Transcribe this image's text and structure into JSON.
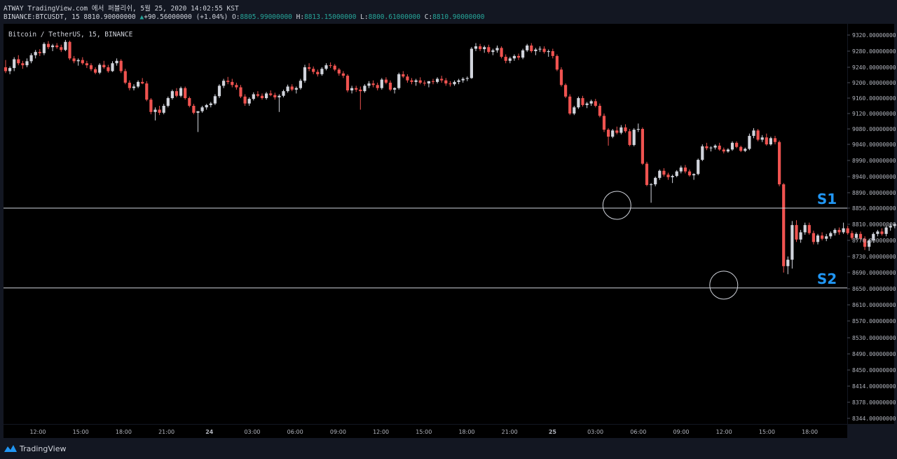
{
  "header": {
    "line1": "ATWAY TradingView.com 에서 퍼블리쉬, 5월 25, 2020 14:02:55 KST",
    "symbol": "BINANCE:BTCUSDT, 15",
    "last": "8810.90000000",
    "arrow": "▲",
    "change": "+90.56000000 (+1.04%)",
    "o_label": "O:",
    "o_value": "8805.99000000",
    "h_label": "H:",
    "h_value": "8813.15000000",
    "l_label": "L:",
    "l_value": "8800.61000000",
    "c_label": "C:",
    "c_value": "8810.90000000"
  },
  "footer": {
    "logo_text": "TradingView",
    "logo_icon": "tradingview-logo-icon"
  },
  "colors": {
    "background": "#000000",
    "frame": "#131722",
    "up": "#d1d4dc",
    "down": "#ef5350",
    "level_line": "#d1d4dc",
    "level_label": "#2196f3",
    "axis_text": "#b2b5be"
  },
  "chart_data": {
    "type": "candlestick",
    "title": "Bitcoin / TetherUS, 15, BINANCE",
    "y_ticks": [
      9320,
      9280,
      9240,
      9200,
      9160,
      9120,
      9080,
      9040,
      8990,
      8940,
      8890,
      8850,
      8810,
      8770,
      8730,
      8690,
      8650,
      8610,
      8570,
      8530,
      8490,
      8450,
      8414,
      8378,
      8344
    ],
    "y_tick_decimals": 8,
    "x_ticks": [
      "12:00",
      "15:00",
      "18:00",
      "21:00",
      "24",
      "03:00",
      "06:00",
      "09:00",
      "12:00",
      "15:00",
      "18:00",
      "21:00",
      "25",
      "03:00",
      "06:00",
      "09:00",
      "12:00",
      "15:00",
      "18:00"
    ],
    "x_tick_bold": [
      "24",
      "25"
    ],
    "levels": [
      {
        "label": "S1",
        "value": 8850
      },
      {
        "label": "S2",
        "value": 8652
      }
    ],
    "annotations": [
      {
        "type": "circle",
        "near_level": "S1",
        "candle_index": 143
      },
      {
        "type": "circle",
        "near_level": "S2",
        "candle_index": 168
      }
    ],
    "ohlc": [
      [
        9240,
        9258,
        9225,
        9230
      ],
      [
        9230,
        9242,
        9222,
        9238
      ],
      [
        9238,
        9265,
        9230,
        9260
      ],
      [
        9260,
        9270,
        9245,
        9250
      ],
      [
        9250,
        9256,
        9236,
        9245
      ],
      [
        9245,
        9262,
        9240,
        9255
      ],
      [
        9255,
        9275,
        9250,
        9270
      ],
      [
        9270,
        9283,
        9262,
        9278
      ],
      [
        9278,
        9285,
        9268,
        9275
      ],
      [
        9275,
        9302,
        9270,
        9298
      ],
      [
        9298,
        9305,
        9285,
        9290
      ],
      [
        9290,
        9298,
        9280,
        9294
      ],
      [
        9294,
        9300,
        9286,
        9290
      ],
      [
        9290,
        9296,
        9278,
        9283
      ],
      [
        9283,
        9308,
        9280,
        9303
      ],
      [
        9303,
        9306,
        9258,
        9262
      ],
      [
        9262,
        9268,
        9250,
        9255
      ],
      [
        9255,
        9262,
        9244,
        9258
      ],
      [
        9258,
        9265,
        9246,
        9250
      ],
      [
        9250,
        9256,
        9238,
        9245
      ],
      [
        9245,
        9250,
        9230,
        9235
      ],
      [
        9235,
        9240,
        9222,
        9226
      ],
      [
        9226,
        9250,
        9222,
        9246
      ],
      [
        9246,
        9256,
        9236,
        9240
      ],
      [
        9240,
        9246,
        9226,
        9230
      ],
      [
        9230,
        9255,
        9228,
        9250
      ],
      [
        9250,
        9262,
        9244,
        9256
      ],
      [
        9256,
        9260,
        9225,
        9230
      ],
      [
        9230,
        9236,
        9196,
        9200
      ],
      [
        9200,
        9206,
        9180,
        9186
      ],
      [
        9186,
        9196,
        9180,
        9190
      ],
      [
        9190,
        9206,
        9186,
        9202
      ],
      [
        9202,
        9212,
        9196,
        9198
      ],
      [
        9198,
        9204,
        9152,
        9156
      ],
      [
        9156,
        9160,
        9118,
        9124
      ],
      [
        9124,
        9136,
        9102,
        9130
      ],
      [
        9130,
        9140,
        9116,
        9122
      ],
      [
        9122,
        9145,
        9118,
        9140
      ],
      [
        9140,
        9164,
        9136,
        9160
      ],
      [
        9160,
        9182,
        9156,
        9178
      ],
      [
        9178,
        9186,
        9162,
        9166
      ],
      [
        9166,
        9190,
        9162,
        9186
      ],
      [
        9186,
        9190,
        9156,
        9160
      ],
      [
        9160,
        9164,
        9136,
        9140
      ],
      [
        9140,
        9145,
        9118,
        9122
      ],
      [
        9122,
        9126,
        9072,
        9126
      ],
      [
        9126,
        9140,
        9122,
        9136
      ],
      [
        9136,
        9145,
        9130,
        9142
      ],
      [
        9142,
        9150,
        9136,
        9146
      ],
      [
        9146,
        9170,
        9142,
        9165
      ],
      [
        9165,
        9196,
        9160,
        9192
      ],
      [
        9192,
        9210,
        9186,
        9205
      ],
      [
        9205,
        9215,
        9196,
        9202
      ],
      [
        9202,
        9210,
        9188,
        9194
      ],
      [
        9194,
        9200,
        9182,
        9188
      ],
      [
        9188,
        9194,
        9160,
        9164
      ],
      [
        9164,
        9170,
        9140,
        9146
      ],
      [
        9146,
        9162,
        9140,
        9158
      ],
      [
        9158,
        9175,
        9154,
        9170
      ],
      [
        9170,
        9178,
        9162,
        9166
      ],
      [
        9166,
        9172,
        9156,
        9160
      ],
      [
        9160,
        9176,
        9156,
        9172
      ],
      [
        9172,
        9180,
        9165,
        9168
      ],
      [
        9168,
        9174,
        9156,
        9162
      ],
      [
        9162,
        9170,
        9124,
        9166
      ],
      [
        9166,
        9182,
        9162,
        9178
      ],
      [
        9178,
        9195,
        9174,
        9190
      ],
      [
        9190,
        9196,
        9178,
        9182
      ],
      [
        9182,
        9190,
        9172,
        9186
      ],
      [
        9186,
        9210,
        9182,
        9205
      ],
      [
        9205,
        9246,
        9200,
        9240
      ],
      [
        9240,
        9250,
        9230,
        9236
      ],
      [
        9236,
        9242,
        9222,
        9228
      ],
      [
        9228,
        9234,
        9216,
        9222
      ],
      [
        9222,
        9240,
        9218,
        9236
      ],
      [
        9236,
        9250,
        9232,
        9245
      ],
      [
        9245,
        9252,
        9238,
        9244
      ],
      [
        9244,
        9248,
        9230,
        9234
      ],
      [
        9234,
        9238,
        9218,
        9224
      ],
      [
        9224,
        9230,
        9212,
        9218
      ],
      [
        9218,
        9222,
        9175,
        9180
      ],
      [
        9180,
        9192,
        9172,
        9186
      ],
      [
        9186,
        9192,
        9176,
        9182
      ],
      [
        9182,
        9190,
        9130,
        9178
      ],
      [
        9178,
        9196,
        9174,
        9192
      ],
      [
        9192,
        9204,
        9186,
        9198
      ],
      [
        9198,
        9206,
        9188,
        9194
      ],
      [
        9194,
        9200,
        9180,
        9186
      ],
      [
        9186,
        9212,
        9182,
        9208
      ],
      [
        9208,
        9214,
        9196,
        9200
      ],
      [
        9200,
        9206,
        9178,
        9182
      ],
      [
        9182,
        9188,
        9172,
        9186
      ],
      [
        9186,
        9226,
        9182,
        9222
      ],
      [
        9222,
        9230,
        9212,
        9216
      ],
      [
        9216,
        9222,
        9200,
        9206
      ],
      [
        9206,
        9212,
        9196,
        9202
      ],
      [
        9202,
        9210,
        9192,
        9206
      ],
      [
        9206,
        9214,
        9196,
        9200
      ],
      [
        9200,
        9206,
        9192,
        9198
      ],
      [
        9198,
        9204,
        9188,
        9204
      ],
      [
        9204,
        9210,
        9196,
        9202
      ],
      [
        9202,
        9214,
        9198,
        9210
      ],
      [
        9210,
        9218,
        9200,
        9206
      ],
      [
        9206,
        9212,
        9192,
        9198
      ],
      [
        9198,
        9204,
        9190,
        9196
      ],
      [
        9196,
        9206,
        9192,
        9202
      ],
      [
        9202,
        9210,
        9196,
        9206
      ],
      [
        9206,
        9214,
        9200,
        9210
      ],
      [
        9210,
        9216,
        9204,
        9212
      ],
      [
        9212,
        9290,
        9210,
        9286
      ],
      [
        9286,
        9300,
        9280,
        9292
      ],
      [
        9292,
        9298,
        9280,
        9285
      ],
      [
        9285,
        9294,
        9276,
        9290
      ],
      [
        9290,
        9296,
        9274,
        9278
      ],
      [
        9278,
        9286,
        9270,
        9282
      ],
      [
        9282,
        9294,
        9276,
        9288
      ],
      [
        9288,
        9292,
        9262,
        9266
      ],
      [
        9266,
        9272,
        9250,
        9256
      ],
      [
        9256,
        9266,
        9250,
        9262
      ],
      [
        9262,
        9272,
        9256,
        9268
      ],
      [
        9268,
        9274,
        9258,
        9264
      ],
      [
        9264,
        9286,
        9260,
        9282
      ],
      [
        9282,
        9298,
        9278,
        9294
      ],
      [
        9294,
        9300,
        9276,
        9280
      ],
      [
        9280,
        9288,
        9270,
        9284
      ],
      [
        9284,
        9292,
        9278,
        9286
      ],
      [
        9286,
        9292,
        9274,
        9278
      ],
      [
        9278,
        9284,
        9266,
        9280
      ],
      [
        9280,
        9286,
        9262,
        9268
      ],
      [
        9268,
        9272,
        9230,
        9234
      ],
      [
        9234,
        9240,
        9190,
        9194
      ],
      [
        9194,
        9198,
        9160,
        9164
      ],
      [
        9164,
        9170,
        9116,
        9120
      ],
      [
        9120,
        9140,
        9116,
        9136
      ],
      [
        9136,
        9164,
        9132,
        9160
      ],
      [
        9160,
        9166,
        9138,
        9142
      ],
      [
        9142,
        9150,
        9134,
        9146
      ],
      [
        9146,
        9156,
        9140,
        9152
      ],
      [
        9152,
        9158,
        9136,
        9140
      ],
      [
        9140,
        9146,
        9110,
        9114
      ],
      [
        9114,
        9120,
        9072,
        9078
      ],
      [
        9078,
        9082,
        9036,
        9060
      ],
      [
        9060,
        9080,
        9056,
        9076
      ],
      [
        9076,
        9086,
        9066,
        9070
      ],
      [
        9070,
        9090,
        9066,
        9084
      ],
      [
        9084,
        9092,
        9070,
        9074
      ],
      [
        9074,
        9080,
        9034,
        9038
      ],
      [
        9038,
        9082,
        9034,
        9078
      ],
      [
        9078,
        9094,
        9072,
        9080
      ],
      [
        9080,
        9084,
        8976,
        8980
      ],
      [
        8980,
        8986,
        8910,
        8914
      ],
      [
        8914,
        8920,
        8864,
        8916
      ],
      [
        8916,
        8940,
        8910,
        8936
      ],
      [
        8936,
        8962,
        8930,
        8958
      ],
      [
        8958,
        8966,
        8940,
        8946
      ],
      [
        8946,
        8952,
        8930,
        8938
      ],
      [
        8938,
        8946,
        8920,
        8942
      ],
      [
        8942,
        8960,
        8938,
        8956
      ],
      [
        8956,
        8974,
        8950,
        8968
      ],
      [
        8968,
        8976,
        8950,
        8956
      ],
      [
        8956,
        8962,
        8940,
        8944
      ],
      [
        8944,
        8950,
        8930,
        8948
      ],
      [
        8948,
        8996,
        8944,
        8992
      ],
      [
        8992,
        9040,
        8988,
        9034
      ],
      [
        9034,
        9044,
        9022,
        9028
      ],
      [
        9028,
        9034,
        9018,
        9030
      ],
      [
        9030,
        9040,
        9024,
        9036
      ],
      [
        9036,
        9044,
        9020,
        9024
      ],
      [
        9024,
        9030,
        9012,
        9018
      ],
      [
        9018,
        9028,
        9014,
        9024
      ],
      [
        9024,
        9048,
        9020,
        9044
      ],
      [
        9044,
        9048,
        9028,
        9032
      ],
      [
        9032,
        9036,
        9016,
        9020
      ],
      [
        9020,
        9030,
        9016,
        9026
      ],
      [
        9026,
        9068,
        9022,
        9062
      ],
      [
        9062,
        9082,
        9056,
        9076
      ],
      [
        9076,
        9080,
        9048,
        9052
      ],
      [
        9052,
        9064,
        9046,
        9058
      ],
      [
        9058,
        9068,
        9036,
        9040
      ],
      [
        9040,
        9060,
        9036,
        9056
      ],
      [
        9056,
        9062,
        9040,
        9046
      ],
      [
        9046,
        9050,
        8910,
        8916
      ],
      [
        8916,
        8920,
        8690,
        8706
      ],
      [
        8706,
        8730,
        8686,
        8722
      ],
      [
        8722,
        8818,
        8700,
        8808
      ],
      [
        8808,
        8820,
        8766,
        8772
      ],
      [
        8772,
        8796,
        8764,
        8790
      ],
      [
        8790,
        8814,
        8784,
        8808
      ],
      [
        8808,
        8814,
        8784,
        8788
      ],
      [
        8788,
        8794,
        8760,
        8766
      ],
      [
        8766,
        8786,
        8760,
        8782
      ],
      [
        8782,
        8790,
        8770,
        8774
      ],
      [
        8774,
        8786,
        8768,
        8780
      ],
      [
        8780,
        8792,
        8774,
        8788
      ],
      [
        8788,
        8800,
        8782,
        8796
      ],
      [
        8796,
        8802,
        8784,
        8790
      ],
      [
        8790,
        8814,
        8786,
        8800
      ],
      [
        8800,
        8806,
        8784,
        8788
      ],
      [
        8788,
        8794,
        8772,
        8776
      ],
      [
        8776,
        8790,
        8770,
        8786
      ],
      [
        8786,
        8792,
        8770,
        8774
      ],
      [
        8774,
        8780,
        8746,
        8754
      ],
      [
        8754,
        8774,
        8744,
        8770
      ],
      [
        8770,
        8790,
        8764,
        8786
      ],
      [
        8786,
        8796,
        8780,
        8792
      ],
      [
        8792,
        8800,
        8782,
        8786
      ],
      [
        8786,
        8806,
        8780,
        8802
      ],
      [
        8802,
        8812,
        8794,
        8806
      ],
      [
        8806,
        8813,
        8800,
        8810
      ]
    ]
  }
}
